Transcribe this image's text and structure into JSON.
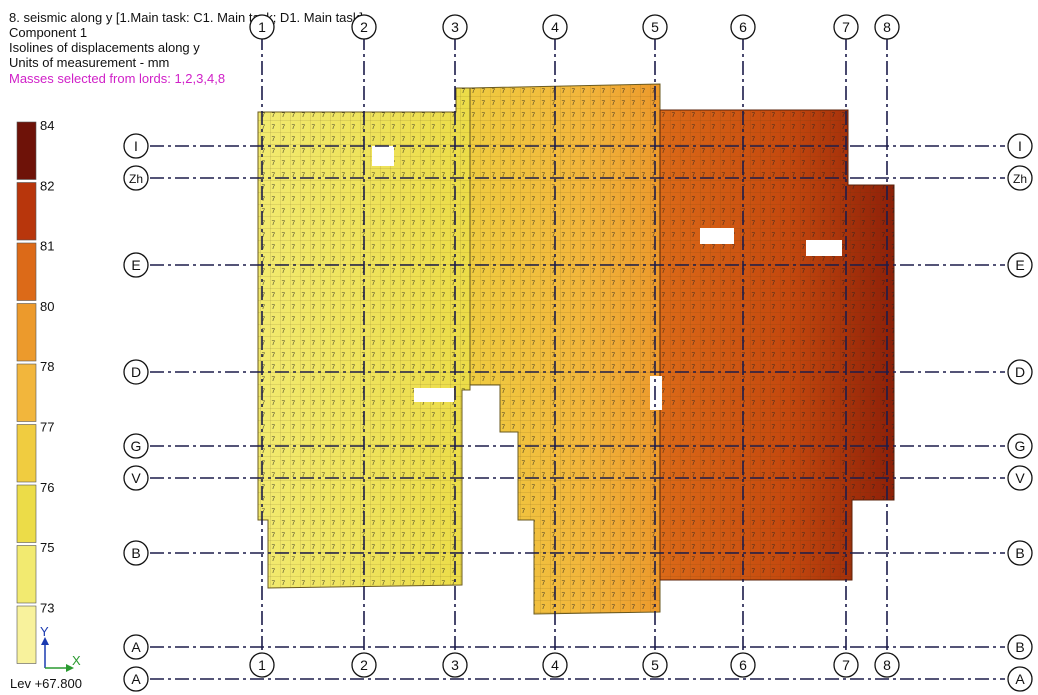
{
  "header": {
    "line1": "8. seismic along y [1.Main task: C1. Main task; D1. Main task]",
    "line2": "Component 1",
    "line3": "Isolines of displacements along y",
    "line4": "Units of measurement - mm",
    "line5": "Masses selected from lords: 1,2,3,4,8"
  },
  "legend": {
    "labels": [
      "84",
      "82",
      "81",
      "80",
      "78",
      "77",
      "76",
      "75",
      "73"
    ],
    "colors": [
      "#6e1208",
      "#b8360c",
      "#dc6a18",
      "#ec9a2c",
      "#f2b63c",
      "#f0cc40",
      "#ecdc48",
      "#f2ea70",
      "#f8f29c"
    ]
  },
  "axes": {
    "column_labels": [
      "1",
      "2",
      "3",
      "4",
      "5",
      "6",
      "7",
      "8"
    ],
    "row_labels_left": [
      "I",
      "Zh",
      "E",
      "D",
      "G",
      "V",
      "B",
      "A",
      "A"
    ],
    "row_labels_right": [
      "I",
      "Zh",
      "E",
      "D",
      "G",
      "V",
      "B",
      "B",
      "A"
    ]
  },
  "coordinate_icon": {
    "y_label": "Y",
    "x_label": "X",
    "level": "Lev +67.800"
  },
  "colors": {
    "zone_low": "#f2ea70",
    "zone_mid": "#ec9a2c",
    "zone_high": "#b8360c",
    "zone_max": "#6e1208",
    "grid_line": "#1c1c4a",
    "axis_icon": "#1a3ab0",
    "axis_x": "#2a9a30"
  }
}
